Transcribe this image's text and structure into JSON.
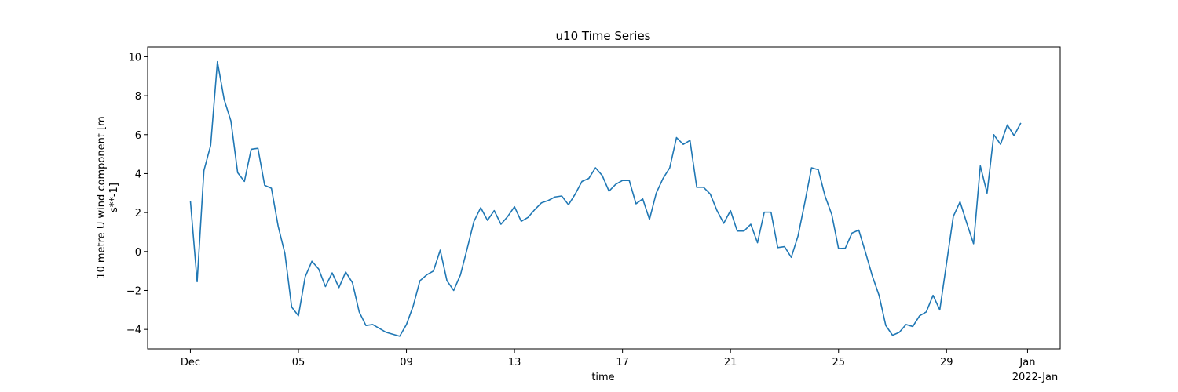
{
  "chart_data": {
    "type": "line",
    "title": "u10 Time Series",
    "xlabel": "time",
    "ylabel_lines": [
      "10 metre U wind component [m",
      "s**-1]"
    ],
    "x_tick_labels": [
      "Dec",
      "05",
      "09",
      "13",
      "17",
      "21",
      "25",
      "29",
      "Jan"
    ],
    "x_offset_label": "2022-Jan",
    "x_tick_dates": [
      "2021-12-01",
      "2021-12-05",
      "2021-12-09",
      "2021-12-13",
      "2021-12-17",
      "2021-12-21",
      "2021-12-25",
      "2021-12-29",
      "2022-01-01"
    ],
    "xlim": [
      "2021-11-29T10:00",
      "2022-01-02T05:00"
    ],
    "y_ticks": [
      -4,
      -2,
      0,
      2,
      4,
      6,
      8,
      10
    ],
    "ylim": [
      -5.0,
      10.5
    ],
    "grid": false,
    "legend": false,
    "line_color": "#1f77b4",
    "series": [
      {
        "x": [
          "2021-12-01T00:00",
          "2021-12-01T06:00",
          "2021-12-01T12:00",
          "2021-12-01T18:00",
          "2021-12-02T00:00",
          "2021-12-02T06:00",
          "2021-12-02T12:00",
          "2021-12-02T18:00",
          "2021-12-03T00:00",
          "2021-12-03T06:00",
          "2021-12-03T12:00",
          "2021-12-03T18:00",
          "2021-12-04T00:00",
          "2021-12-04T06:00",
          "2021-12-04T12:00",
          "2021-12-04T18:00",
          "2021-12-05T00:00",
          "2021-12-05T06:00",
          "2021-12-05T12:00",
          "2021-12-05T18:00",
          "2021-12-06T00:00",
          "2021-12-06T06:00",
          "2021-12-06T12:00",
          "2021-12-06T18:00",
          "2021-12-07T00:00",
          "2021-12-07T06:00",
          "2021-12-07T12:00",
          "2021-12-07T18:00",
          "2021-12-08T00:00",
          "2021-12-08T06:00",
          "2021-12-08T12:00",
          "2021-12-08T18:00",
          "2021-12-09T00:00",
          "2021-12-09T06:00",
          "2021-12-09T12:00",
          "2021-12-09T18:00",
          "2021-12-10T00:00",
          "2021-12-10T06:00",
          "2021-12-10T12:00",
          "2021-12-10T18:00",
          "2021-12-11T00:00",
          "2021-12-11T06:00",
          "2021-12-11T12:00",
          "2021-12-11T18:00",
          "2021-12-12T00:00",
          "2021-12-12T06:00",
          "2021-12-12T12:00",
          "2021-12-12T18:00",
          "2021-12-13T00:00",
          "2021-12-13T06:00",
          "2021-12-13T12:00",
          "2021-12-13T18:00",
          "2021-12-14T00:00",
          "2021-12-14T06:00",
          "2021-12-14T12:00",
          "2021-12-14T18:00",
          "2021-12-15T00:00",
          "2021-12-15T06:00",
          "2021-12-15T12:00",
          "2021-12-15T18:00",
          "2021-12-16T00:00",
          "2021-12-16T06:00",
          "2021-12-16T12:00",
          "2021-12-16T18:00",
          "2021-12-17T00:00",
          "2021-12-17T06:00",
          "2021-12-17T12:00",
          "2021-12-17T18:00",
          "2021-12-18T00:00",
          "2021-12-18T06:00",
          "2021-12-18T12:00",
          "2021-12-18T18:00",
          "2021-12-19T00:00",
          "2021-12-19T06:00",
          "2021-12-19T12:00",
          "2021-12-19T18:00",
          "2021-12-20T00:00",
          "2021-12-20T06:00",
          "2021-12-20T12:00",
          "2021-12-20T18:00",
          "2021-12-21T00:00",
          "2021-12-21T06:00",
          "2021-12-21T12:00",
          "2021-12-21T18:00",
          "2021-12-22T00:00",
          "2021-12-22T06:00",
          "2021-12-22T12:00",
          "2021-12-22T18:00",
          "2021-12-23T00:00",
          "2021-12-23T06:00",
          "2021-12-23T12:00",
          "2021-12-23T18:00",
          "2021-12-24T00:00",
          "2021-12-24T06:00",
          "2021-12-24T12:00",
          "2021-12-24T18:00",
          "2021-12-25T00:00",
          "2021-12-25T06:00",
          "2021-12-25T12:00",
          "2021-12-25T18:00",
          "2021-12-26T00:00",
          "2021-12-26T06:00",
          "2021-12-26T12:00",
          "2021-12-26T18:00",
          "2021-12-27T00:00",
          "2021-12-27T06:00",
          "2021-12-27T12:00",
          "2021-12-27T18:00",
          "2021-12-28T00:00",
          "2021-12-28T06:00",
          "2021-12-28T12:00",
          "2021-12-28T18:00",
          "2021-12-29T00:00",
          "2021-12-29T06:00",
          "2021-12-29T12:00",
          "2021-12-29T18:00",
          "2021-12-30T00:00",
          "2021-12-30T06:00",
          "2021-12-30T12:00",
          "2021-12-30T18:00",
          "2021-12-31T00:00",
          "2021-12-31T06:00",
          "2021-12-31T12:00",
          "2021-12-31T18:00"
        ],
        "y": [
          2.6,
          -1.55,
          4.15,
          5.45,
          9.75,
          7.8,
          6.7,
          4.05,
          3.6,
          5.25,
          5.3,
          3.4,
          3.25,
          1.3,
          -0.1,
          -2.85,
          -3.3,
          -1.3,
          -0.5,
          -0.9,
          -1.8,
          -1.1,
          -1.85,
          -1.05,
          -1.6,
          -3.1,
          -3.8,
          -3.75,
          -3.95,
          -4.15,
          -4.25,
          -4.35,
          -3.75,
          -2.8,
          -1.5,
          -1.2,
          -1.0,
          0.07,
          -1.5,
          -2.0,
          -1.2,
          0.15,
          1.55,
          2.25,
          1.6,
          2.1,
          1.4,
          1.8,
          2.3,
          1.55,
          1.75,
          2.15,
          2.5,
          2.62,
          2.8,
          2.85,
          2.4,
          2.95,
          3.6,
          3.75,
          4.3,
          3.9,
          3.1,
          3.45,
          3.65,
          3.65,
          2.45,
          2.7,
          1.65,
          3.0,
          3.75,
          4.3,
          5.85,
          5.5,
          5.7,
          3.3,
          3.3,
          2.95,
          2.1,
          1.45,
          2.1,
          1.05,
          1.05,
          1.4,
          0.45,
          2.02,
          2.02,
          0.2,
          0.25,
          -0.3,
          0.8,
          2.5,
          4.3,
          4.2,
          2.85,
          1.9,
          0.15,
          0.17,
          0.95,
          1.1,
          -0.05,
          -1.25,
          -2.25,
          -3.8,
          -4.3,
          -4.15,
          -3.75,
          -3.85,
          -3.3,
          -3.1,
          -2.25,
          -3.0,
          -0.6,
          1.8,
          2.55,
          1.45,
          0.4,
          4.4,
          3.0,
          6.0,
          5.5,
          6.5,
          5.95,
          6.6
        ]
      }
    ]
  }
}
